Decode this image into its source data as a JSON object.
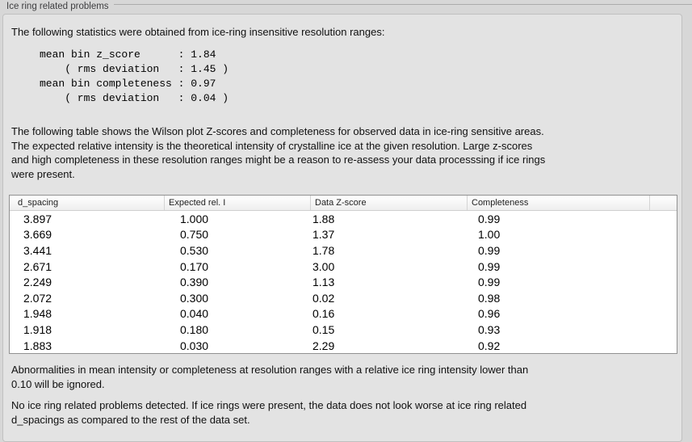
{
  "caption": "Ice ring related problems",
  "intro": "The following statistics were obtained from ice-ring insensitive resolution ranges:",
  "stats_block": "mean bin z_score      : 1.84\n    ( rms deviation   : 1.45 )\nmean bin completeness : 0.97\n    ( rms deviation   : 0.04 )",
  "table_note": "The following table shows the Wilson plot Z-scores and completeness for observed data in ice-ring sensitive areas.\nThe expected relative intensity is the theoretical intensity of crystalline ice at the given resolution. Large z-scores\nand high completeness in these resolution ranges might be a reason to re-assess your data processsing if ice rings\nwere present.",
  "table": {
    "columns": [
      "d_spacing",
      "Expected rel. I",
      "Data Z-score",
      "Completeness"
    ],
    "rows": [
      {
        "d_spacing": "3.897",
        "expected": "1.000",
        "z_score": "1.88",
        "completeness": "0.99"
      },
      {
        "d_spacing": "3.669",
        "expected": "0.750",
        "z_score": "1.37",
        "completeness": "1.00"
      },
      {
        "d_spacing": "3.441",
        "expected": "0.530",
        "z_score": "1.78",
        "completeness": "0.99"
      },
      {
        "d_spacing": "2.671",
        "expected": "0.170",
        "z_score": "3.00",
        "completeness": "0.99"
      },
      {
        "d_spacing": "2.249",
        "expected": "0.390",
        "z_score": "1.13",
        "completeness": "0.99"
      },
      {
        "d_spacing": "2.072",
        "expected": "0.300",
        "z_score": "0.02",
        "completeness": "0.98"
      },
      {
        "d_spacing": "1.948",
        "expected": "0.040",
        "z_score": "0.16",
        "completeness": "0.96"
      },
      {
        "d_spacing": "1.918",
        "expected": "0.180",
        "z_score": "0.15",
        "completeness": "0.93"
      },
      {
        "d_spacing": "1.883",
        "expected": "0.030",
        "z_score": "2.29",
        "completeness": "0.92"
      }
    ]
  },
  "footer_note_1": "Abnormalities in mean intensity or completeness at resolution ranges with a relative ice ring intensity lower than\n0.10 will be ignored.",
  "footer_note_2": "No ice ring related problems detected. If ice rings were present, the data does not look worse at ice ring related\nd_spacings as compared to the rest of the data set."
}
